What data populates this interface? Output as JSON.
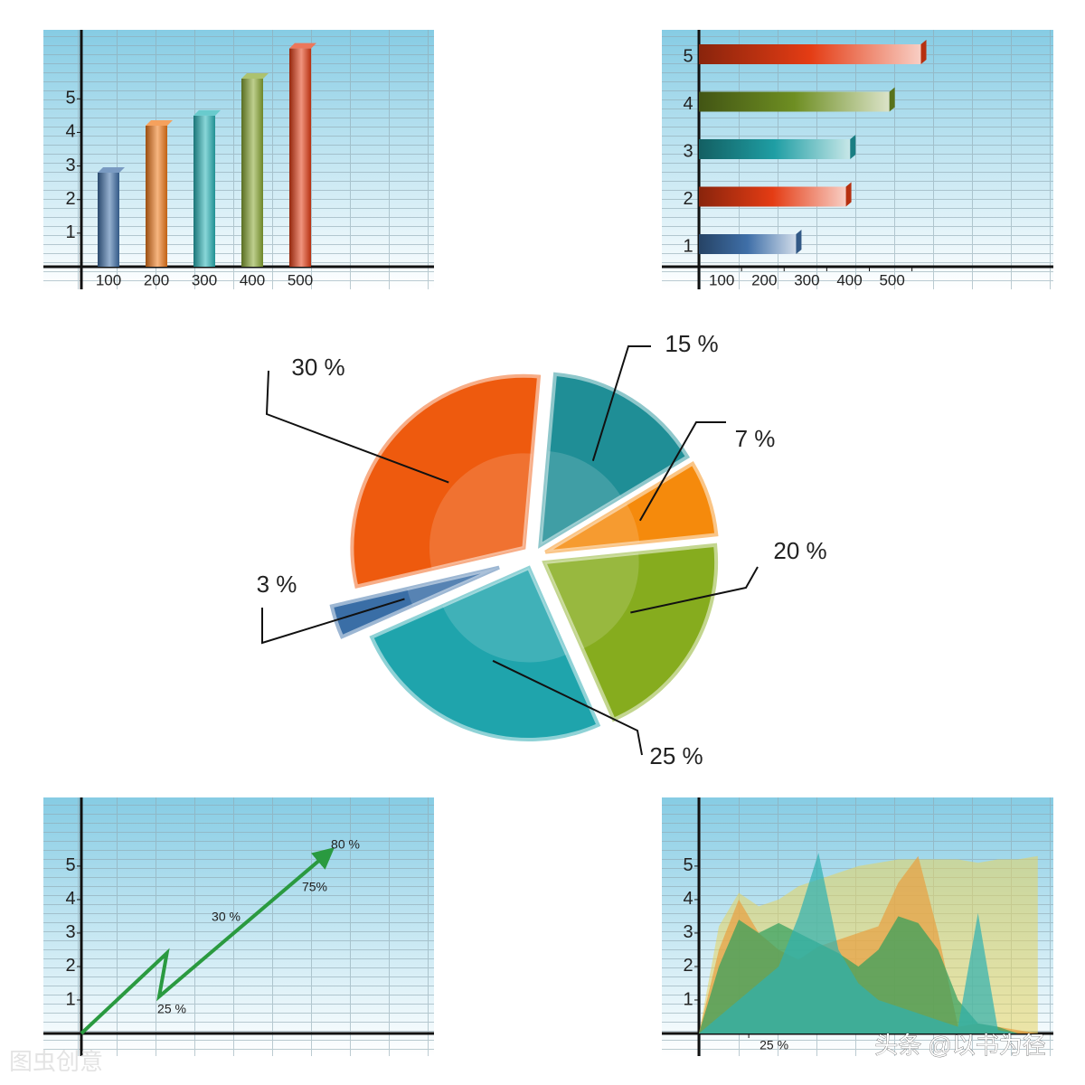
{
  "chart_data": [
    {
      "type": "bar",
      "categories": [
        "100",
        "200",
        "300",
        "400",
        "500"
      ],
      "values": [
        2.8,
        4.2,
        4.5,
        5.6,
        6.5
      ],
      "colors": [
        "#3f6fa8",
        "#f07818",
        "#28b4b8",
        "#88a832",
        "#e43c14"
      ],
      "ylim": [
        0,
        7
      ],
      "yticks": [
        1,
        2,
        3,
        4,
        5
      ]
    },
    {
      "type": "hbar",
      "categories": [
        "1",
        "2",
        "3",
        "4",
        "5"
      ],
      "values": [
        228,
        345,
        355,
        447,
        521
      ],
      "colors": [
        "#3f6fa8",
        "#e43c14",
        "#1f9ea4",
        "#6e8e22",
        "#e43c14"
      ],
      "xlim": [
        0,
        800
      ],
      "xticks": [
        100,
        200,
        300,
        400,
        500
      ]
    },
    {
      "type": "pie",
      "values": [
        15,
        7,
        20,
        25,
        3,
        30
      ],
      "value_labels": [
        "15 %",
        "7 %",
        "20 %",
        "25 %",
        "3 %",
        "30 %"
      ],
      "colors": [
        "#1f8e96",
        "#f58a0c",
        "#86ac1e",
        "#1fa4ac",
        "#3a6ea6",
        "#ee5a0e"
      ]
    },
    {
      "type": "line",
      "x": [
        0,
        2.2,
        2.0,
        6.3
      ],
      "values": [
        0,
        2.4,
        1.1,
        5.35
      ],
      "color": "#2a9a40",
      "xlim": [
        0,
        9
      ],
      "ylim": [
        0,
        7.05
      ],
      "yticks": [
        1,
        2,
        3,
        4,
        5
      ],
      "annotations": [
        "25 %",
        "30 %",
        "75%",
        "80 %"
      ]
    },
    {
      "type": "area",
      "x": [
        0,
        10,
        20,
        30,
        40,
        50,
        60,
        70,
        80,
        90,
        100,
        110,
        120,
        130,
        140,
        150,
        160,
        170
      ],
      "series": [
        {
          "color": "#e6d460",
          "values": [
            0,
            3.2,
            4.2,
            3.8,
            4.0,
            4.4,
            4.6,
            4.8,
            5.0,
            5.1,
            5.2,
            5.2,
            5.2,
            5.2,
            5.1,
            5.2,
            5.2,
            5.3
          ]
        },
        {
          "color": "#e8a040",
          "values": [
            0,
            2.5,
            4.0,
            3.0,
            2.5,
            2.2,
            2.6,
            2.8,
            3.0,
            3.2,
            4.5,
            5.3,
            3.0,
            0.2,
            0.3,
            0.2,
            0.1,
            0
          ]
        },
        {
          "color": "#2f9e5c",
          "values": [
            0,
            2.0,
            3.4,
            3.0,
            3.3,
            3.0,
            2.7,
            2.4,
            2.0,
            2.5,
            3.5,
            3.3,
            2.5,
            1.0,
            0.3,
            0.2,
            0,
            0
          ]
        },
        {
          "color": "#2fb0b0",
          "values": [
            0,
            0.5,
            1.0,
            1.5,
            2.0,
            3.5,
            5.4,
            2.5,
            1.5,
            1.0,
            0.8,
            0.6,
            0.4,
            0.2,
            3.6,
            0.1,
            0,
            0
          ]
        }
      ],
      "xlim": [
        0,
        171
      ],
      "ylim": [
        0,
        7.05
      ],
      "xticks": [
        {
          "value": 25,
          "label": "25 %"
        }
      ],
      "yticks": [
        1,
        2,
        3,
        4,
        5
      ]
    }
  ],
  "watermarks": [
    "头条 @以书为径",
    "图虫创意"
  ]
}
